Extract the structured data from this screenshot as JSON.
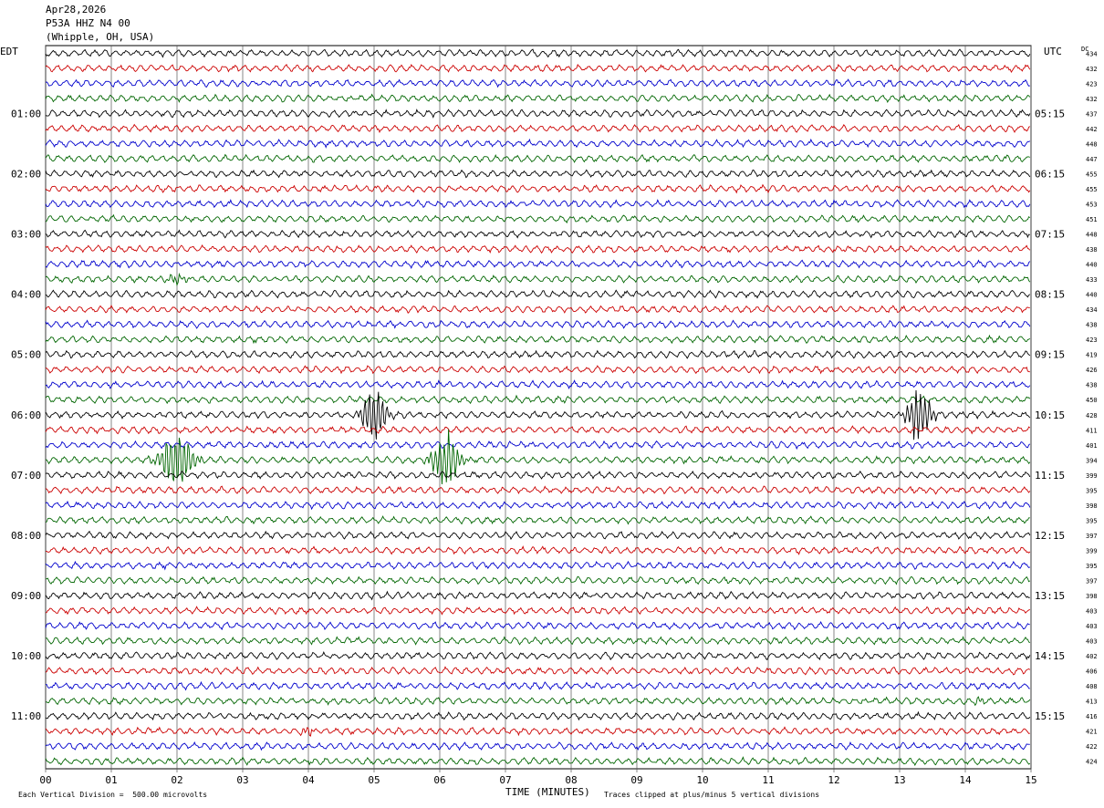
{
  "header": {
    "date": "Apr28,2026",
    "station": "P53A HHZ N4 00",
    "location": "(Whipple, OH, USA)"
  },
  "footer": {
    "scale_note": "Each Vertical Division =  500.00 microvolts",
    "xlabel": "TIME (MINUTES)",
    "clip_note": "Traces clipped at plus/minus 5 vertical divisions"
  },
  "colors": {
    "trace_cycle": [
      "#000000",
      "#cc0000",
      "#0000cc",
      "#006600"
    ],
    "grid": "#000000"
  },
  "chart_data": {
    "type": "line",
    "title": "",
    "left_axis_label": "EDT",
    "right_axis_label": "UTC",
    "dc_label": "DC",
    "xlabel": "TIME (MINUTES)",
    "x_ticks": [
      "00",
      "01",
      "02",
      "03",
      "04",
      "05",
      "06",
      "07",
      "08",
      "09",
      "10",
      "11",
      "12",
      "13",
      "14",
      "15"
    ],
    "xlim": [
      0,
      15
    ],
    "trace_count": 48,
    "edt_hour_labels": [
      {
        "trace": 4,
        "label": "01:00"
      },
      {
        "trace": 8,
        "label": "02:00"
      },
      {
        "trace": 12,
        "label": "03:00"
      },
      {
        "trace": 16,
        "label": "04:00"
      },
      {
        "trace": 20,
        "label": "05:00"
      },
      {
        "trace": 24,
        "label": "06:00"
      },
      {
        "trace": 28,
        "label": "07:00"
      },
      {
        "trace": 32,
        "label": "08:00"
      },
      {
        "trace": 36,
        "label": "09:00"
      },
      {
        "trace": 40,
        "label": "10:00"
      },
      {
        "trace": 44,
        "label": "11:00"
      }
    ],
    "utc_hour_labels": [
      {
        "trace": 4,
        "label": "05:15"
      },
      {
        "trace": 8,
        "label": "06:15"
      },
      {
        "trace": 12,
        "label": "07:15"
      },
      {
        "trace": 16,
        "label": "08:15"
      },
      {
        "trace": 20,
        "label": "09:15"
      },
      {
        "trace": 24,
        "label": "10:15"
      },
      {
        "trace": 28,
        "label": "11:15"
      },
      {
        "trace": 32,
        "label": "12:15"
      },
      {
        "trace": 36,
        "label": "13:15"
      },
      {
        "trace": 40,
        "label": "14:15"
      },
      {
        "trace": 44,
        "label": "15:15"
      }
    ],
    "dc_offsets": [
      434,
      432,
      423,
      432,
      437,
      442,
      448,
      447,
      455,
      455,
      453,
      451,
      448,
      438,
      440,
      433,
      440,
      434,
      438,
      423,
      419,
      426,
      438,
      450,
      428,
      411,
      401,
      394,
      399,
      395,
      398,
      395,
      397,
      399,
      395,
      397,
      398,
      403,
      403,
      403,
      402,
      406,
      408,
      413,
      416,
      421,
      422,
      424
    ],
    "events": [
      {
        "trace": 15,
        "minute": 2.0,
        "amplitude": 0.6,
        "duration": 0.35
      },
      {
        "trace": 24,
        "minute": 5.0,
        "amplitude": 3.2,
        "duration": 0.45
      },
      {
        "trace": 24,
        "minute": 13.3,
        "amplitude": 3.0,
        "duration": 0.45
      },
      {
        "trace": 27,
        "minute": 2.0,
        "amplitude": 3.6,
        "duration": 0.6
      },
      {
        "trace": 27,
        "minute": 6.1,
        "amplitude": 3.2,
        "duration": 0.5
      },
      {
        "trace": 43,
        "minute": 14.2,
        "amplitude": 0.5,
        "duration": 0.2
      },
      {
        "trace": 45,
        "minute": 4.0,
        "amplitude": 0.6,
        "duration": 0.25
      }
    ]
  }
}
